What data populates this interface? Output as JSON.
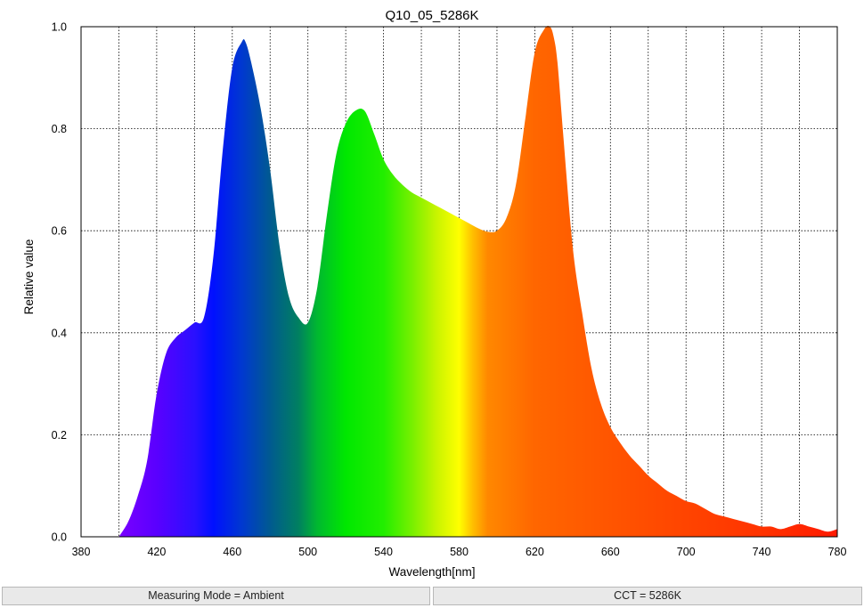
{
  "chart_data": {
    "type": "area",
    "title": "Q10_05_5286K",
    "xlabel": "Wavelength[nm]",
    "ylabel": "Relative value",
    "xlim": [
      380,
      780
    ],
    "ylim": [
      0,
      1.0
    ],
    "xticks": [
      "380",
      "420",
      "460",
      "500",
      "540",
      "580",
      "620",
      "660",
      "700",
      "740",
      "780"
    ],
    "yticks": [
      "0.0",
      "0.2",
      "0.4",
      "0.6",
      "0.8",
      "1.0"
    ],
    "grid": true,
    "fill": "wavelength-spectrum-gradient",
    "x": [
      400,
      405,
      410,
      415,
      420,
      425,
      430,
      435,
      440,
      445,
      450,
      455,
      460,
      465,
      467,
      470,
      475,
      480,
      485,
      490,
      495,
      500,
      505,
      510,
      515,
      520,
      525,
      530,
      535,
      540,
      545,
      550,
      555,
      560,
      565,
      570,
      575,
      580,
      585,
      590,
      595,
      600,
      605,
      610,
      615,
      620,
      625,
      628,
      630,
      632,
      635,
      640,
      645,
      650,
      655,
      660,
      665,
      670,
      675,
      680,
      685,
      690,
      695,
      700,
      705,
      710,
      715,
      720,
      725,
      730,
      735,
      740,
      745,
      750,
      755,
      760,
      765,
      770,
      775,
      780
    ],
    "y": [
      0.0,
      0.03,
      0.08,
      0.15,
      0.28,
      0.36,
      0.39,
      0.405,
      0.42,
      0.43,
      0.55,
      0.76,
      0.92,
      0.97,
      0.97,
      0.93,
      0.84,
      0.72,
      0.57,
      0.47,
      0.43,
      0.42,
      0.49,
      0.63,
      0.75,
      0.81,
      0.835,
      0.835,
      0.79,
      0.74,
      0.71,
      0.69,
      0.675,
      0.665,
      0.655,
      0.645,
      0.635,
      0.625,
      0.615,
      0.605,
      0.598,
      0.6,
      0.625,
      0.69,
      0.82,
      0.95,
      0.995,
      1.0,
      0.98,
      0.93,
      0.79,
      0.57,
      0.44,
      0.33,
      0.26,
      0.215,
      0.185,
      0.16,
      0.14,
      0.12,
      0.105,
      0.09,
      0.08,
      0.07,
      0.065,
      0.055,
      0.045,
      0.04,
      0.035,
      0.03,
      0.025,
      0.02,
      0.02,
      0.015,
      0.02,
      0.025,
      0.02,
      0.015,
      0.01,
      0.015
    ]
  },
  "status": {
    "measuring_mode": "Measuring Mode = Ambient",
    "cct": "CCT = 5286K"
  }
}
